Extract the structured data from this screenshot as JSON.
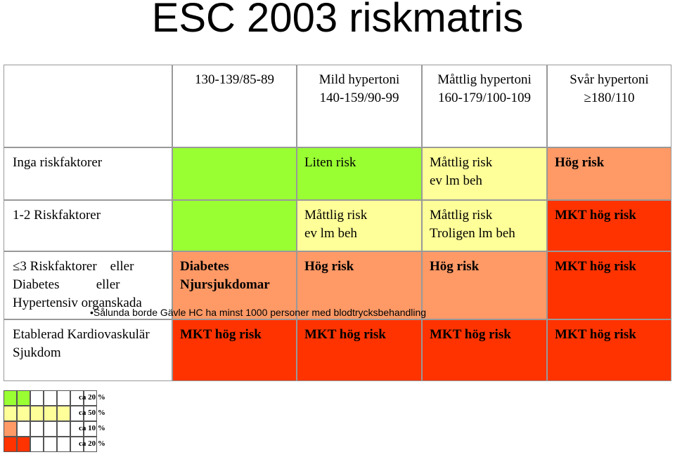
{
  "title": "ESC 2003 riskmatris",
  "table": {
    "header": [
      null,
      "130-139/85-89",
      "Mild hypertoni\n140-159/90-99",
      "Måttlig hypertoni\n160-179/100-109",
      "Svår hypertoni\n≥180/110"
    ],
    "rows": [
      [
        "Inga riskfaktorer",
        null,
        "Liten risk",
        "Måttlig risk\nev lm beh",
        "Hög risk"
      ],
      [
        "1-2 Riskfaktorer",
        null,
        "Måttlig risk\nev lm beh",
        "Måttlig risk\nTroligen lm beh",
        "MKT hög risk"
      ],
      [
        "≤3 Riskfaktorer    eller\nDiabetes           eller\nHypertensiv organskada",
        "Diabetes\nNjursjukdomar",
        "Hög risk",
        "Hög risk",
        "MKT hög risk"
      ],
      [
        "Etablerad Kardiovaskulär\nSjukdom",
        "MKT hög risk",
        "MKT hög risk",
        "MKT hög risk",
        "MKT hög risk"
      ]
    ]
  },
  "note": "•Sålunda borde Gävle HC ha minst 1000 personer med blodtrycksbehandling",
  "legend": [
    "ca 20 %",
    "ca 50 %",
    "ca 10 %",
    "ca 20 %"
  ]
}
